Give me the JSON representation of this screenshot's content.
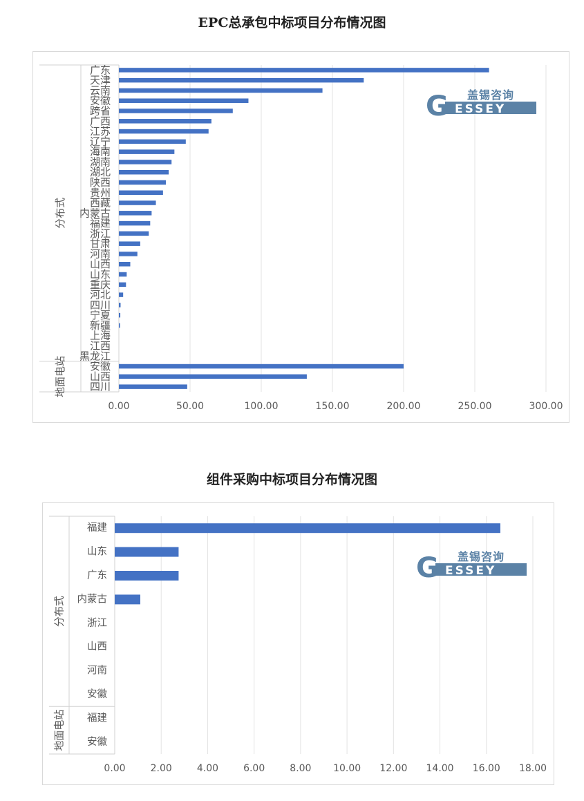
{
  "logo": {
    "cn": "盖锡咨询",
    "en_letter": "G",
    "en_rest": "ESSEY",
    "color": "#5b82a6"
  },
  "bar_color": "#4472c4",
  "chart_data": [
    {
      "type": "bar",
      "orientation": "horizontal",
      "title": "EPC总承包中标项目分布情况图",
      "groups": [
        {
          "name": "分布式",
          "categories": [
            "广东",
            "天津",
            "云南",
            "安徽",
            "跨省",
            "广西",
            "江苏",
            "辽宁",
            "海南",
            "湖南",
            "湖北",
            "陕西",
            "贵州",
            "西藏",
            "内蒙古",
            "福建",
            "浙江",
            "甘肃",
            "河南",
            "山西",
            "山东",
            "重庆",
            "河北",
            "四川",
            "宁夏",
            "新疆",
            "上海",
            "江西",
            "黑龙江"
          ],
          "values": [
            260,
            172,
            143,
            91,
            80,
            65,
            63,
            47,
            39,
            37,
            35,
            33,
            31,
            26,
            23,
            22,
            21,
            15,
            13,
            8,
            5.5,
            5,
            3,
            1.2,
            1,
            0.8,
            0,
            0,
            0
          ]
        },
        {
          "name": "地面电站",
          "categories": [
            "安徽",
            "山西",
            "四川"
          ],
          "values": [
            200,
            132,
            48
          ]
        }
      ],
      "xlim": [
        0,
        300
      ],
      "ticks": [
        "0.00",
        "50.00",
        "100.00",
        "150.00",
        "200.00",
        "250.00",
        "300.00"
      ],
      "grid": true
    },
    {
      "type": "bar",
      "orientation": "horizontal",
      "title": "组件采购中标项目分布情况图",
      "groups": [
        {
          "name": "分布式",
          "categories": [
            "福建",
            "山东",
            "广东",
            "内蒙古",
            "浙江",
            "山西",
            "河南",
            "安徽"
          ],
          "values": [
            16.6,
            2.75,
            2.75,
            1.1,
            0,
            0,
            0,
            0
          ]
        },
        {
          "name": "地面电站",
          "categories": [
            "福建",
            "安徽"
          ],
          "values": [
            0,
            0
          ]
        }
      ],
      "xlim": [
        0,
        18
      ],
      "ticks": [
        "0.00",
        "2.00",
        "4.00",
        "6.00",
        "8.00",
        "10.00",
        "12.00",
        "14.00",
        "16.00",
        "18.00"
      ],
      "grid": true
    }
  ]
}
